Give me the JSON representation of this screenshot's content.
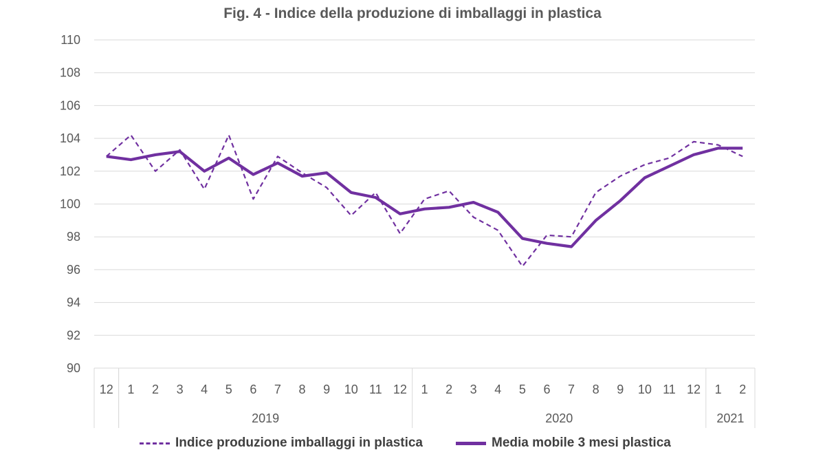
{
  "chart_data": {
    "type": "line",
    "title": "Fig. 4  - Indice della produzione di imballaggi in plastica",
    "xlabel": "",
    "ylabel": "",
    "ylim": [
      90,
      110
    ],
    "yticks": [
      "90",
      "92",
      "94",
      "96",
      "98",
      "100",
      "102",
      "104",
      "106",
      "108",
      "110"
    ],
    "months": [
      "12",
      "1",
      "2",
      "3",
      "4",
      "5",
      "6",
      "7",
      "8",
      "9",
      "10",
      "11",
      "12",
      "1",
      "2",
      "3",
      "4",
      "5",
      "6",
      "7",
      "8",
      "9",
      "10",
      "11",
      "12",
      "1",
      "2"
    ],
    "years": [
      {
        "label": "",
        "count": 1
      },
      {
        "label": "2019",
        "count": 12
      },
      {
        "label": "2020",
        "count": 12
      },
      {
        "label": "2021",
        "count": 2
      }
    ],
    "grid": true,
    "legend_position": "bottom",
    "series": [
      {
        "name": "Indice produzione imballaggi in plastica",
        "style": "dashed",
        "color": "#7030A0",
        "values": [
          102.9,
          104.2,
          102.0,
          103.3,
          100.9,
          104.2,
          100.3,
          102.9,
          101.9,
          101.0,
          99.3,
          100.7,
          98.2,
          100.3,
          100.8,
          99.2,
          98.4,
          96.2,
          98.1,
          98.0,
          100.7,
          101.7,
          102.4,
          102.8,
          103.8,
          103.6,
          102.9
        ]
      },
      {
        "name": "Media mobile 3 mesi plastica",
        "style": "solid",
        "color": "#7030A0",
        "values": [
          102.9,
          102.7,
          103.0,
          103.2,
          102.0,
          102.8,
          101.8,
          102.5,
          101.7,
          101.9,
          100.7,
          100.4,
          99.4,
          99.7,
          99.8,
          100.1,
          99.5,
          97.9,
          97.6,
          97.4,
          99.0,
          100.2,
          101.6,
          102.3,
          103.0,
          103.4,
          103.4
        ]
      }
    ]
  }
}
